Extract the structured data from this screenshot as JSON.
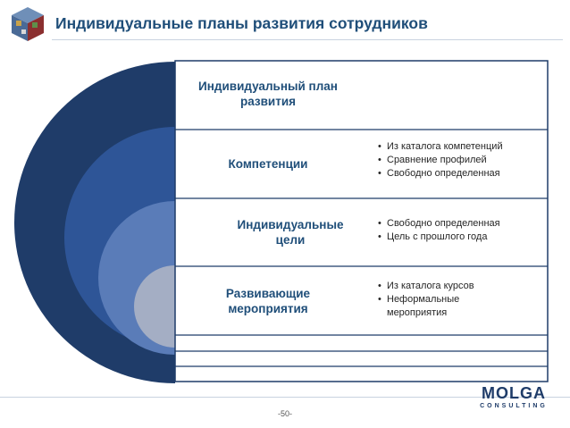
{
  "header": {
    "title": "Индивидуальные планы развития сотрудников"
  },
  "diagram": {
    "center_title_line1": "Индивидуальный план",
    "center_title_line2": "развития",
    "sections": [
      {
        "label_line1": "Компетенции",
        "label_line2": "",
        "bullets": [
          "Из каталога компетенций",
          "Сравнение профилей",
          "Свободно определенная"
        ]
      },
      {
        "label_line1": "Индивидуальные",
        "label_line2": "цели",
        "bullets": [
          "Свободно определенная",
          "Цель с прошлого года"
        ]
      },
      {
        "label_line1": "Развивающие",
        "label_line2": "мероприятия",
        "bullets": [
          "Из каталога курсов",
          "Неформальные",
          "мероприятия"
        ]
      }
    ],
    "colors": {
      "ring_outer": "#1f3c69",
      "ring_2": "#2e5597",
      "ring_3": "#5a7cb8",
      "ring_inner": "#a4aec4",
      "label_text": "#1f4e79"
    }
  },
  "footer": {
    "page_number": "-50-",
    "logo_text": "MOLGA",
    "logo_subtext": "CONSULTING"
  }
}
